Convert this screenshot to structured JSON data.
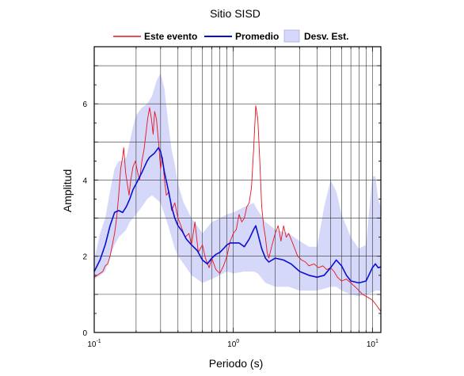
{
  "chart_data": {
    "type": "line",
    "title": "Sitio SISD",
    "xlabel": "Periodo (s)",
    "ylabel": "Amplitud",
    "x_scale": "log",
    "xlim": [
      0.1,
      11.5
    ],
    "ylim": [
      0,
      7.5
    ],
    "x_ticks": [
      {
        "value": 0.1,
        "base": "10",
        "exp": "-1"
      },
      {
        "value": 1,
        "base": "10",
        "exp": "0"
      },
      {
        "value": 10,
        "base": "10",
        "exp": "1"
      }
    ],
    "y_ticks": [
      0,
      2,
      4,
      6
    ],
    "grid": true,
    "legend": {
      "placement": "top",
      "entries": [
        {
          "key": "event",
          "label": "Este evento",
          "color": "#e8131b",
          "kind": "line"
        },
        {
          "key": "mean",
          "label": "Promedio",
          "color": "#0a0fcf",
          "kind": "line"
        },
        {
          "key": "std",
          "label": "Desv. Est.",
          "color": "#d6d8fa",
          "kind": "band"
        }
      ]
    },
    "colors": {
      "event": "#e8131b",
      "mean": "#0a0fcf",
      "band": "#d6d8fa"
    },
    "series": [
      {
        "key": "event",
        "points": [
          [
            0.1,
            1.45
          ],
          [
            0.105,
            1.5
          ],
          [
            0.11,
            1.55
          ],
          [
            0.115,
            1.6
          ],
          [
            0.12,
            1.75
          ],
          [
            0.125,
            1.8
          ],
          [
            0.13,
            2.0
          ],
          [
            0.135,
            2.3
          ],
          [
            0.14,
            2.6
          ],
          [
            0.145,
            3.0
          ],
          [
            0.15,
            3.6
          ],
          [
            0.155,
            4.3
          ],
          [
            0.16,
            4.6
          ],
          [
            0.163,
            4.85
          ],
          [
            0.168,
            4.2
          ],
          [
            0.173,
            3.9
          ],
          [
            0.178,
            3.6
          ],
          [
            0.183,
            4.0
          ],
          [
            0.19,
            4.35
          ],
          [
            0.198,
            4.5
          ],
          [
            0.205,
            4.2
          ],
          [
            0.212,
            4.0
          ],
          [
            0.22,
            4.5
          ],
          [
            0.228,
            4.8
          ],
          [
            0.235,
            5.2
          ],
          [
            0.242,
            5.6
          ],
          [
            0.25,
            5.9
          ],
          [
            0.258,
            5.6
          ],
          [
            0.265,
            5.2
          ],
          [
            0.272,
            5.8
          ],
          [
            0.28,
            5.6
          ],
          [
            0.29,
            5.0
          ],
          [
            0.3,
            4.3
          ],
          [
            0.31,
            4.6
          ],
          [
            0.32,
            4.0
          ],
          [
            0.33,
            3.6
          ],
          [
            0.345,
            3.7
          ],
          [
            0.36,
            3.2
          ],
          [
            0.38,
            3.4
          ],
          [
            0.4,
            3.0
          ],
          [
            0.42,
            2.8
          ],
          [
            0.45,
            2.5
          ],
          [
            0.48,
            2.6
          ],
          [
            0.5,
            2.3
          ],
          [
            0.53,
            2.9
          ],
          [
            0.56,
            2.1
          ],
          [
            0.6,
            2.3
          ],
          [
            0.63,
            1.95
          ],
          [
            0.67,
            1.7
          ],
          [
            0.7,
            1.95
          ],
          [
            0.75,
            1.65
          ],
          [
            0.8,
            1.55
          ],
          [
            0.85,
            1.75
          ],
          [
            0.9,
            2.0
          ],
          [
            0.95,
            2.4
          ],
          [
            1.0,
            2.6
          ],
          [
            1.05,
            2.7
          ],
          [
            1.1,
            3.1
          ],
          [
            1.15,
            2.9
          ],
          [
            1.2,
            3.0
          ],
          [
            1.25,
            3.3
          ],
          [
            1.3,
            3.4
          ],
          [
            1.35,
            3.8
          ],
          [
            1.4,
            4.8
          ],
          [
            1.45,
            5.95
          ],
          [
            1.5,
            5.6
          ],
          [
            1.55,
            4.5
          ],
          [
            1.6,
            3.3
          ],
          [
            1.65,
            2.8
          ],
          [
            1.7,
            2.5
          ],
          [
            1.75,
            2.1
          ],
          [
            1.8,
            1.95
          ],
          [
            1.9,
            2.3
          ],
          [
            2.0,
            2.6
          ],
          [
            2.1,
            2.8
          ],
          [
            2.2,
            2.4
          ],
          [
            2.3,
            2.8
          ],
          [
            2.4,
            2.5
          ],
          [
            2.5,
            2.6
          ],
          [
            2.7,
            2.3
          ],
          [
            2.9,
            2.0
          ],
          [
            3.1,
            1.9
          ],
          [
            3.3,
            1.85
          ],
          [
            3.5,
            1.75
          ],
          [
            3.8,
            1.8
          ],
          [
            4.1,
            1.7
          ],
          [
            4.4,
            1.75
          ],
          [
            4.7,
            1.65
          ],
          [
            5.0,
            1.7
          ],
          [
            5.3,
            1.6
          ],
          [
            5.6,
            1.45
          ],
          [
            6.0,
            1.35
          ],
          [
            6.5,
            1.4
          ],
          [
            7.0,
            1.3
          ],
          [
            7.5,
            1.2
          ],
          [
            8.0,
            1.1
          ],
          [
            8.5,
            1.0
          ],
          [
            9.0,
            0.95
          ],
          [
            9.5,
            0.9
          ],
          [
            10.0,
            0.85
          ],
          [
            10.5,
            0.75
          ],
          [
            11.0,
            0.65
          ],
          [
            11.5,
            0.55
          ]
        ]
      },
      {
        "key": "mean",
        "points": [
          [
            0.1,
            1.6
          ],
          [
            0.11,
            1.9
          ],
          [
            0.12,
            2.3
          ],
          [
            0.13,
            2.8
          ],
          [
            0.14,
            3.15
          ],
          [
            0.15,
            3.2
          ],
          [
            0.16,
            3.15
          ],
          [
            0.17,
            3.3
          ],
          [
            0.18,
            3.5
          ],
          [
            0.19,
            3.75
          ],
          [
            0.2,
            3.9
          ],
          [
            0.21,
            4.05
          ],
          [
            0.22,
            4.2
          ],
          [
            0.23,
            4.35
          ],
          [
            0.24,
            4.5
          ],
          [
            0.25,
            4.6
          ],
          [
            0.27,
            4.7
          ],
          [
            0.29,
            4.85
          ],
          [
            0.3,
            4.75
          ],
          [
            0.31,
            4.5
          ],
          [
            0.32,
            4.2
          ],
          [
            0.34,
            3.75
          ],
          [
            0.36,
            3.3
          ],
          [
            0.38,
            3.0
          ],
          [
            0.4,
            2.8
          ],
          [
            0.43,
            2.65
          ],
          [
            0.46,
            2.45
          ],
          [
            0.5,
            2.3
          ],
          [
            0.55,
            2.15
          ],
          [
            0.6,
            1.9
          ],
          [
            0.65,
            1.8
          ],
          [
            0.7,
            1.95
          ],
          [
            0.75,
            2.05
          ],
          [
            0.8,
            2.1
          ],
          [
            0.85,
            2.2
          ],
          [
            0.9,
            2.3
          ],
          [
            0.95,
            2.35
          ],
          [
            1.0,
            2.35
          ],
          [
            1.1,
            2.35
          ],
          [
            1.2,
            2.25
          ],
          [
            1.3,
            2.45
          ],
          [
            1.4,
            2.7
          ],
          [
            1.45,
            2.8
          ],
          [
            1.5,
            2.6
          ],
          [
            1.6,
            2.2
          ],
          [
            1.7,
            1.95
          ],
          [
            1.8,
            1.85
          ],
          [
            2.0,
            1.95
          ],
          [
            2.3,
            1.9
          ],
          [
            2.6,
            1.8
          ],
          [
            3.0,
            1.6
          ],
          [
            3.5,
            1.5
          ],
          [
            4.0,
            1.45
          ],
          [
            4.5,
            1.5
          ],
          [
            5.0,
            1.7
          ],
          [
            5.5,
            1.9
          ],
          [
            6.0,
            1.75
          ],
          [
            6.5,
            1.5
          ],
          [
            7.0,
            1.35
          ],
          [
            8.0,
            1.3
          ],
          [
            9.0,
            1.35
          ],
          [
            10.0,
            1.7
          ],
          [
            10.5,
            1.8
          ],
          [
            11.0,
            1.7
          ],
          [
            11.5,
            1.72
          ]
        ]
      }
    ],
    "band": {
      "key": "std",
      "points": [
        [
          0.1,
          1.4,
          1.9
        ],
        [
          0.11,
          1.5,
          2.6
        ],
        [
          0.12,
          1.6,
          3.0
        ],
        [
          0.13,
          2.0,
          3.7
        ],
        [
          0.14,
          2.3,
          4.3
        ],
        [
          0.15,
          2.5,
          4.5
        ],
        [
          0.16,
          2.6,
          4.5
        ],
        [
          0.17,
          2.7,
          4.6
        ],
        [
          0.18,
          2.9,
          5.0
        ],
        [
          0.19,
          3.0,
          5.4
        ],
        [
          0.2,
          3.1,
          5.7
        ],
        [
          0.22,
          3.3,
          5.9
        ],
        [
          0.24,
          3.5,
          6.0
        ],
        [
          0.26,
          3.6,
          6.2
        ],
        [
          0.28,
          3.5,
          6.6
        ],
        [
          0.3,
          3.4,
          6.8
        ],
        [
          0.32,
          3.1,
          6.4
        ],
        [
          0.34,
          2.8,
          5.5
        ],
        [
          0.36,
          2.5,
          4.8
        ],
        [
          0.38,
          2.2,
          4.4
        ],
        [
          0.4,
          2.0,
          3.9
        ],
        [
          0.44,
          1.8,
          3.4
        ],
        [
          0.5,
          1.5,
          3.0
        ],
        [
          0.55,
          1.4,
          2.8
        ],
        [
          0.6,
          1.3,
          2.6
        ],
        [
          0.7,
          1.4,
          2.9
        ],
        [
          0.8,
          1.5,
          3.0
        ],
        [
          0.9,
          1.6,
          3.1
        ],
        [
          1.0,
          1.55,
          3.15
        ],
        [
          1.2,
          1.6,
          3.3
        ],
        [
          1.4,
          1.6,
          3.4
        ],
        [
          1.5,
          1.55,
          3.2
        ],
        [
          1.7,
          1.3,
          2.9
        ],
        [
          2.0,
          1.2,
          2.7
        ],
        [
          2.5,
          1.2,
          2.6
        ],
        [
          3.0,
          1.1,
          2.4
        ],
        [
          3.5,
          1.1,
          2.25
        ],
        [
          4.0,
          1.1,
          2.25
        ],
        [
          4.5,
          1.15,
          3.3
        ],
        [
          5.0,
          1.2,
          4.0
        ],
        [
          5.5,
          1.2,
          3.7
        ],
        [
          6.0,
          1.1,
          3.1
        ],
        [
          7.0,
          1.0,
          2.5
        ],
        [
          8.0,
          0.95,
          2.2
        ],
        [
          9.0,
          1.0,
          2.3
        ],
        [
          10.0,
          1.05,
          4.1
        ],
        [
          10.5,
          1.1,
          4.1
        ],
        [
          11.0,
          1.1,
          3.5
        ],
        [
          11.5,
          1.1,
          3.3
        ]
      ]
    }
  }
}
